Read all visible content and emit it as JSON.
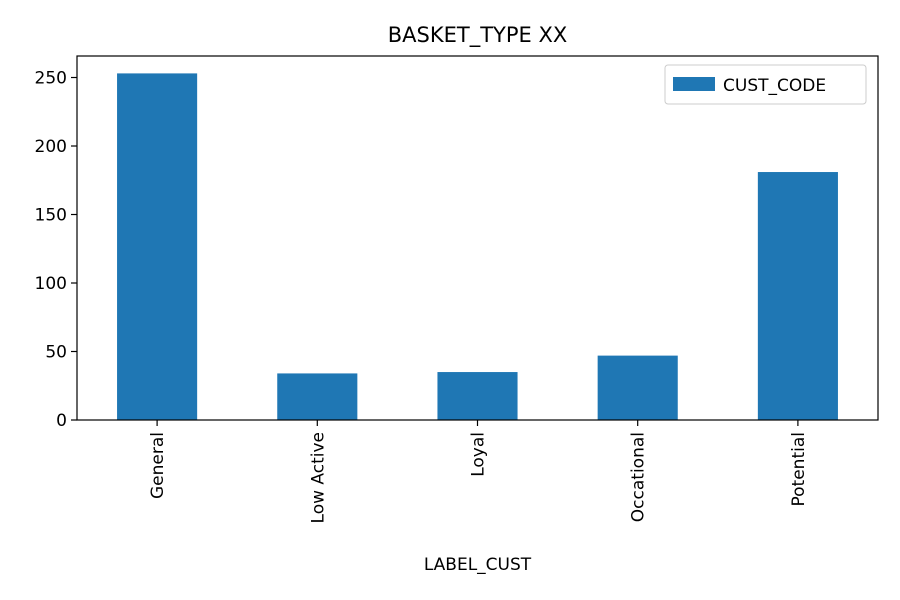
{
  "chart_data": {
    "type": "bar",
    "title": "BASKET_TYPE XX",
    "xlabel": "LABEL_CUST",
    "ylabel": "",
    "categories": [
      "General",
      "Low Active",
      "Loyal",
      "Occational",
      "Potential"
    ],
    "series": [
      {
        "name": "CUST_CODE",
        "values": [
          253,
          34,
          35,
          47,
          181
        ]
      }
    ],
    "ylim": [
      0,
      265.7
    ],
    "yticks": [
      0,
      50,
      100,
      150,
      200,
      250
    ],
    "legend": {
      "position": "upper right"
    },
    "grid": false,
    "colors": {
      "bar": "#1f77b4",
      "axis": "#000000",
      "legend_border": "#cccccc"
    }
  }
}
